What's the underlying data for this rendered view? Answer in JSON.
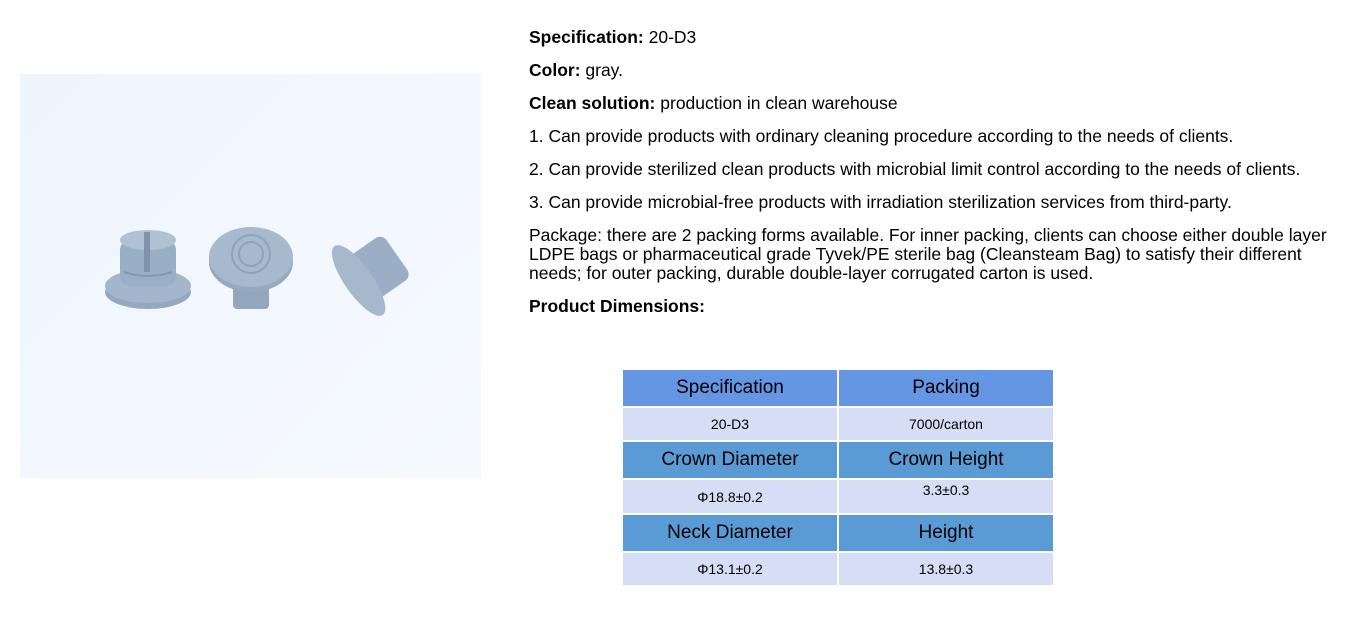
{
  "product_image": {
    "alt_subject": "gray rubber stoppers",
    "colors": {
      "background": "#f2f7fd",
      "stopper": "#9eb2c8"
    }
  },
  "details": {
    "spec_label": "Specification:",
    "spec_value": " 20-D3",
    "color_label": "Color:",
    "color_value": " gray.",
    "clean_label": "Clean solution:",
    "clean_value": " production in clean warehouse",
    "items": [
      "1. Can provide products with ordinary cleaning procedure according to the needs of clients.",
      "2. Can provide sterilized clean products with microbial limit control according to the needs of clients.",
      "3. Can provide microbial-free products with irradiation sterilization services from third-party."
    ],
    "package": "Package: there are 2 packing forms available. For inner packing, clients can choose either double layer LDPE bags or  pharmaceutical grade Tyvek/PE sterile bag (Cleansteam Bag) to satisfy their different needs; for outer packing, durable double-layer corrugated carton is used.",
    "dimensions_label": "Product Dimensions:"
  },
  "table": {
    "colors": {
      "header1": "#6496e4",
      "header": "#5b9bd5",
      "row": "#d5def5"
    },
    "rows": [
      [
        "Specification",
        "Packing"
      ],
      [
        "20-D3",
        "7000/carton"
      ],
      [
        "Crown Diameter",
        "Crown Height"
      ],
      [
        "Φ18.8±0.2",
        "3.3±0.3"
      ],
      [
        "Neck Diameter",
        "Height"
      ],
      [
        "Φ13.1±0.2",
        "13.8±0.3"
      ]
    ]
  }
}
